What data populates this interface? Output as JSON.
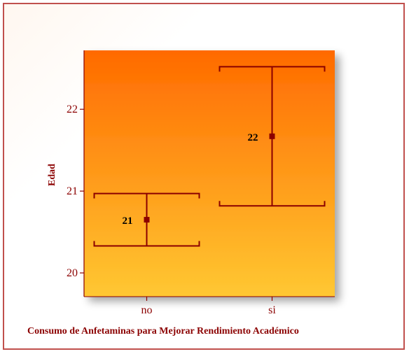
{
  "colors": {
    "frame_border": "#c0504d",
    "plot_gradient_top": "#ff6a00",
    "plot_gradient_bottom": "#ffc832",
    "errorbar": "#8b0000",
    "axis_text": "#8b0000",
    "data_label": "#000000"
  },
  "chart_data": {
    "type": "errorbar",
    "title": "",
    "xlabel": "Consumo de Anfetaminas para Mejorar Rendimiento Académico",
    "ylabel": "Edad",
    "categories": [
      "no",
      "si"
    ],
    "series": [
      {
        "means": [
          20.65,
          21.67
        ],
        "lower": [
          20.33,
          20.82
        ],
        "upper": [
          20.97,
          22.52
        ],
        "labels": [
          "21",
          "22"
        ]
      }
    ],
    "y_ticks": [
      20,
      21,
      22
    ],
    "ylim": [
      19.71,
      22.72
    ],
    "grid": false,
    "legend": "none"
  }
}
